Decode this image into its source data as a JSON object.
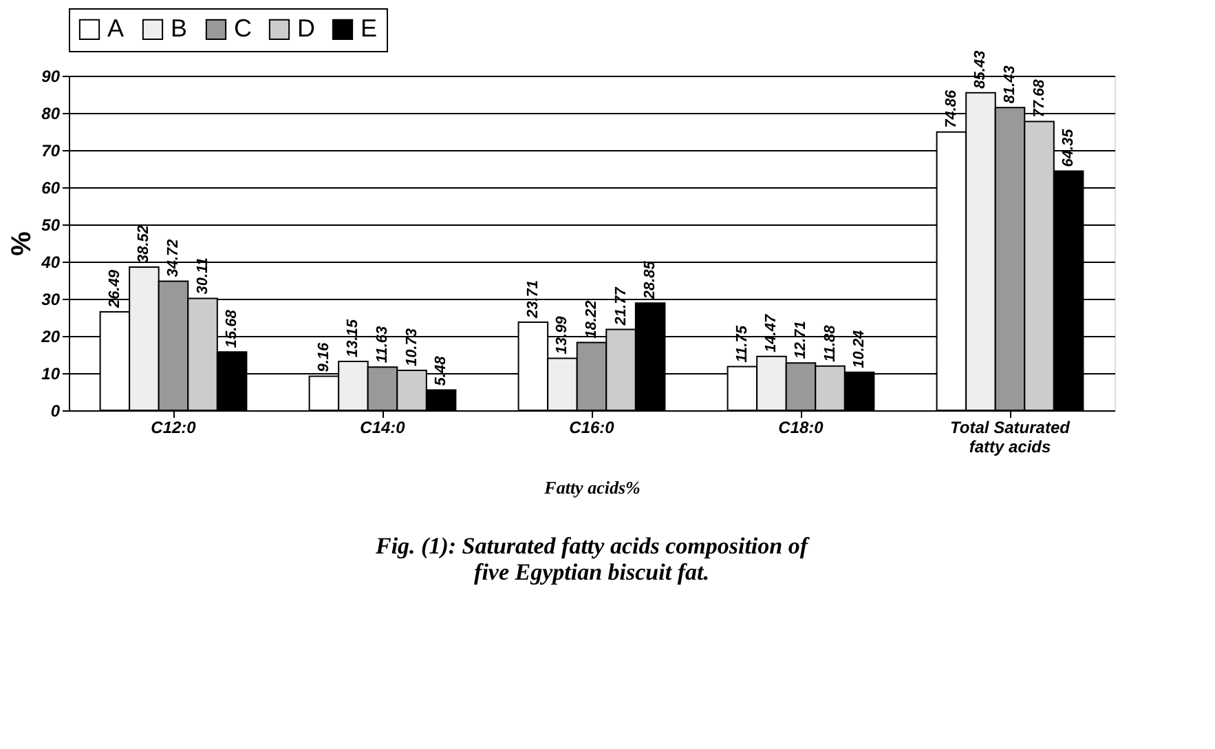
{
  "chart_data": {
    "type": "bar",
    "title": "Fig. (1): Saturated fatty acids composition of five Egyptian biscuit fat.",
    "xlabel": "Fatty acids%",
    "ylabel": "%",
    "categories": [
      "C12:0",
      "C14:0",
      "C16:0",
      "C18:0",
      "Total Saturated fatty acids"
    ],
    "series": [
      {
        "name": "A",
        "color": "#ffffff",
        "values": [
          26.49,
          9.16,
          23.71,
          11.75,
          74.86
        ]
      },
      {
        "name": "B",
        "color": "#eeeeee",
        "values": [
          38.52,
          13.15,
          13.99,
          14.47,
          85.43
        ]
      },
      {
        "name": "C",
        "color": "#999999",
        "values": [
          34.72,
          11.63,
          18.22,
          12.71,
          81.43
        ]
      },
      {
        "name": "D",
        "color": "#cccccc",
        "values": [
          30.11,
          10.73,
          21.77,
          11.88,
          77.68
        ]
      },
      {
        "name": "E",
        "color": "#000000",
        "values": [
          15.68,
          5.48,
          28.85,
          10.24,
          64.35
        ]
      }
    ],
    "ylim": [
      0,
      90
    ],
    "yticks": [
      0,
      10,
      20,
      30,
      40,
      50,
      60,
      70,
      80,
      90
    ],
    "grid": "y",
    "legend": "top",
    "data_labels": true
  }
}
